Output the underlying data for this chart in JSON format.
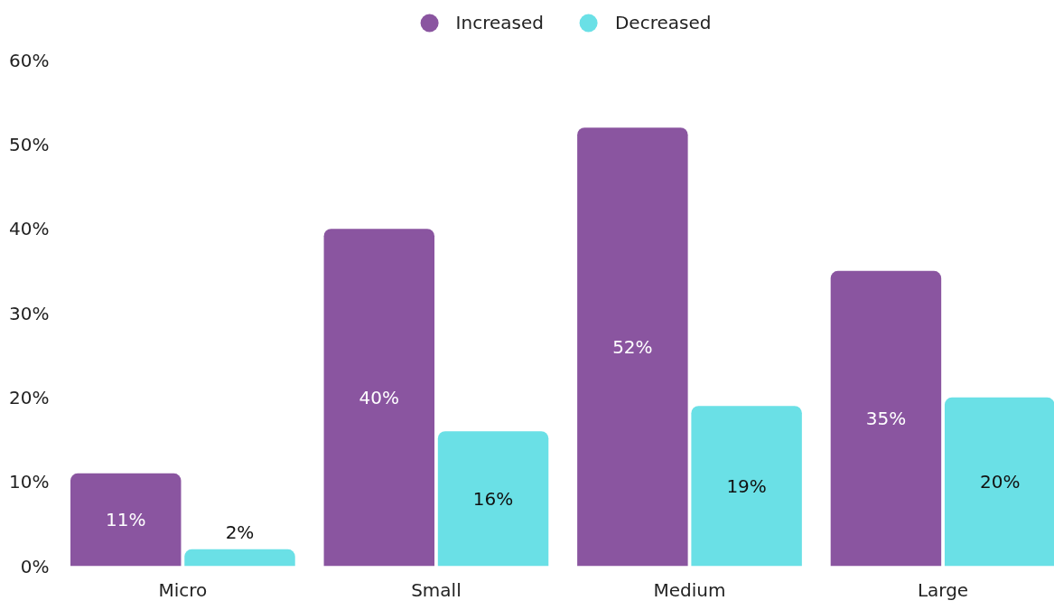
{
  "chart_data": {
    "type": "bar",
    "categories": [
      "Micro",
      "Small",
      "Medium",
      "Large"
    ],
    "series": [
      {
        "name": "Increased",
        "color": "#8a55a0",
        "values": [
          11,
          40,
          52,
          35
        ],
        "value_labels": [
          "11%",
          "40%",
          "52%",
          "35%"
        ]
      },
      {
        "name": "Decreased",
        "color": "#6ae0e6",
        "values": [
          2,
          16,
          19,
          20
        ],
        "value_labels": [
          "2%",
          "16%",
          "19%",
          "20%"
        ]
      }
    ],
    "ylim": [
      0,
      60
    ],
    "yticks": [
      {
        "value": 0,
        "label": "0%"
      },
      {
        "value": 10,
        "label": "10%"
      },
      {
        "value": 20,
        "label": "20%"
      },
      {
        "value": 30,
        "label": "30%"
      },
      {
        "value": 40,
        "label": "40%"
      },
      {
        "value": 50,
        "label": "50%"
      },
      {
        "value": 60,
        "label": "60%"
      }
    ],
    "grid": false,
    "legend": "top"
  }
}
